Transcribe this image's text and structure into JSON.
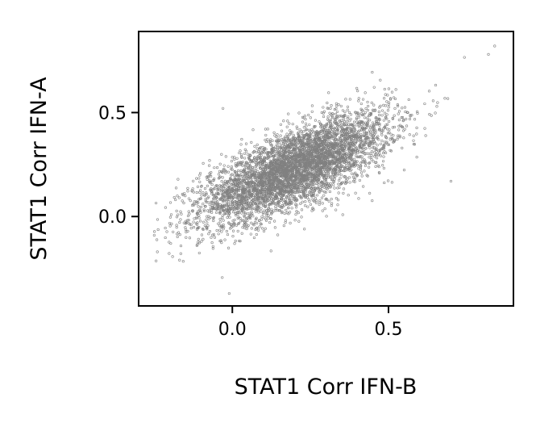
{
  "chart_data": {
    "type": "scatter",
    "title": "",
    "xlabel": "STAT1 Corr IFN-B",
    "ylabel": "STAT1 Corr IFN-A",
    "xlim": [
      -0.3,
      0.9
    ],
    "ylim": [
      -0.43,
      0.89
    ],
    "xticks": [
      0.0,
      0.5
    ],
    "xtick_labels": [
      "0.0",
      "0.5"
    ],
    "yticks": [
      0.0,
      0.5
    ],
    "ytick_labels": [
      "0.0",
      "0.5"
    ],
    "grid": false,
    "legend": "none",
    "marker_color": "#808080",
    "marker": "small hollow circle",
    "n_points": 5000,
    "x_mean": 0.2,
    "y_mean": 0.23,
    "x_sd": 0.15,
    "y_sd": 0.13,
    "correlation": 0.72,
    "x_range": [
      -0.25,
      0.84
    ],
    "y_range": [
      -0.37,
      0.82
    ],
    "highlighted_points": [
      {
        "x": 0.84,
        "y": 0.82
      },
      {
        "x": 0.82,
        "y": 0.78
      },
      {
        "x": 0.7,
        "y": 0.17
      },
      {
        "x": -0.01,
        "y": -0.37
      },
      {
        "x": -0.25,
        "y": -0.09
      },
      {
        "x": -0.24,
        "y": -0.17
      },
      {
        "x": -0.03,
        "y": 0.52
      }
    ]
  }
}
